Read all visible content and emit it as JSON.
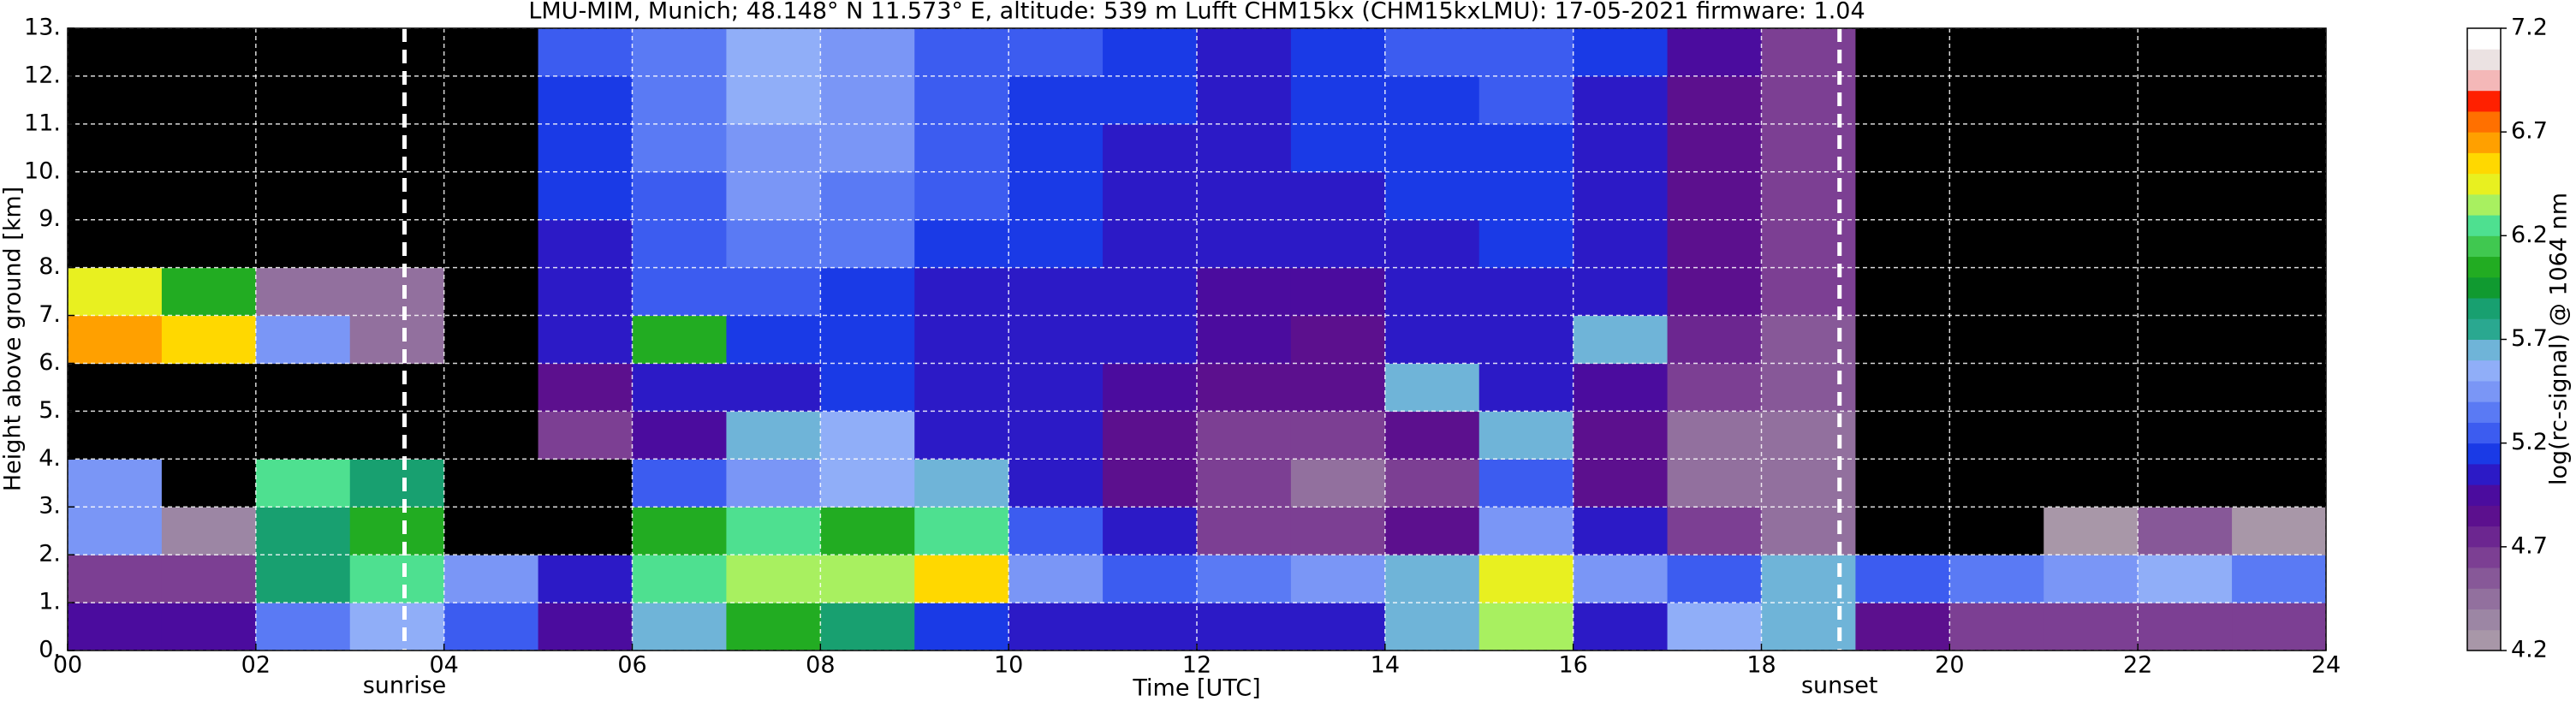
{
  "chart_data": {
    "type": "heatmap",
    "title": "LMU-MIM, Munich; 48.148° N 11.573° E, altitude: 539 m    Lufft CHM15kx (CHM15kxLMU): 17-05-2021    firmware: 1.04",
    "xlabel": "Time [UTC]",
    "ylabel": "Height above ground [km]",
    "xlim": [
      0,
      24
    ],
    "xticks": [
      {
        "value": 0,
        "label": "00"
      },
      {
        "value": 2,
        "label": "02"
      },
      {
        "value": 4,
        "label": "04"
      },
      {
        "value": 6,
        "label": "06"
      },
      {
        "value": 8,
        "label": "08"
      },
      10,
      12,
      14,
      16,
      18,
      20,
      22,
      24
    ],
    "ylim": [
      0,
      13
    ],
    "yticks": [
      {
        "value": 0,
        "label": "0."
      },
      {
        "value": 1,
        "label": "1."
      },
      {
        "value": 2,
        "label": "2."
      },
      {
        "value": 3,
        "label": "3."
      },
      {
        "value": 4,
        "label": "4."
      },
      {
        "value": 5,
        "label": "5."
      },
      {
        "value": 6,
        "label": "6."
      },
      {
        "value": 7,
        "label": "7."
      },
      {
        "value": 8,
        "label": "8."
      },
      {
        "value": 9,
        "label": "9."
      },
      {
        "value": 10,
        "label": "10."
      },
      {
        "value": 11,
        "label": "11."
      },
      {
        "value": 12,
        "label": "12."
      },
      {
        "value": 13,
        "label": "13."
      }
    ],
    "grid": true,
    "grid_color": "#ffffff",
    "under_color": "#000000",
    "z": [
      [
        4.9,
        4.9,
        5.3,
        5.5,
        5.2,
        4.9,
        5.6,
        6.0,
        5.8,
        5.1,
        5.0,
        5.0,
        5.0,
        5.0,
        5.6,
        6.3,
        5.0,
        5.5,
        5.6,
        4.8,
        4.6,
        4.6,
        4.6,
        4.6
      ],
      [
        4.6,
        4.6,
        5.8,
        6.2,
        5.4,
        5.0,
        6.2,
        6.3,
        6.3,
        6.5,
        5.4,
        5.2,
        5.3,
        5.4,
        5.6,
        6.4,
        5.4,
        5.2,
        5.6,
        5.2,
        5.3,
        5.4,
        5.5,
        5.3
      ],
      [
        5.4,
        4.3,
        5.8,
        6.0,
        4.0,
        4.0,
        6.0,
        6.2,
        6.0,
        6.2,
        5.2,
        5.0,
        4.6,
        4.6,
        4.8,
        5.4,
        5.0,
        4.6,
        4.4,
        4.0,
        4.0,
        4.2,
        4.5,
        4.2
      ],
      [
        5.4,
        4.0,
        6.2,
        5.8,
        4.0,
        4.0,
        5.2,
        5.4,
        5.5,
        5.6,
        5.0,
        4.8,
        4.6,
        4.4,
        4.6,
        5.2,
        4.8,
        4.4,
        4.4,
        4.0,
        4.0,
        4.0,
        4.0,
        4.0
      ],
      [
        4.0,
        4.0,
        4.0,
        4.0,
        4.0,
        4.6,
        4.9,
        5.6,
        5.5,
        5.0,
        5.0,
        4.8,
        4.6,
        4.6,
        4.8,
        5.6,
        4.8,
        4.4,
        4.4,
        4.0,
        4.0,
        4.0,
        4.0,
        4.0
      ],
      [
        4.0,
        4.0,
        4.0,
        4.0,
        4.0,
        4.8,
        5.0,
        5.0,
        5.1,
        5.0,
        5.0,
        4.9,
        4.8,
        4.8,
        5.6,
        5.0,
        4.9,
        4.6,
        4.5,
        4.0,
        4.0,
        4.0,
        4.0,
        4.0
      ],
      [
        6.6,
        6.5,
        5.4,
        4.4,
        4.0,
        5.0,
        6.0,
        5.1,
        5.1,
        5.0,
        5.0,
        5.0,
        4.9,
        4.8,
        5.0,
        5.0,
        5.6,
        4.7,
        4.5,
        4.0,
        4.0,
        4.0,
        4.0,
        4.0
      ],
      [
        6.4,
        6.0,
        4.4,
        4.4,
        4.0,
        5.0,
        5.2,
        5.2,
        5.1,
        5.0,
        5.0,
        5.0,
        4.9,
        4.9,
        5.0,
        5.0,
        5.0,
        4.8,
        4.6,
        4.0,
        4.0,
        4.0,
        4.0,
        4.0
      ],
      [
        4.0,
        4.0,
        4.0,
        4.0,
        4.0,
        5.0,
        5.2,
        5.3,
        5.3,
        5.1,
        5.1,
        5.0,
        5.0,
        5.0,
        5.0,
        5.1,
        5.0,
        4.8,
        4.6,
        4.0,
        4.0,
        4.0,
        4.0,
        4.0
      ],
      [
        4.0,
        4.0,
        4.0,
        4.0,
        4.0,
        5.1,
        5.2,
        5.4,
        5.3,
        5.2,
        5.1,
        5.0,
        5.0,
        5.0,
        5.1,
        5.1,
        5.0,
        4.8,
        4.6,
        4.0,
        4.0,
        4.0,
        4.0,
        4.0
      ],
      [
        4.0,
        4.0,
        4.0,
        4.0,
        4.0,
        5.1,
        5.3,
        5.4,
        5.4,
        5.2,
        5.1,
        5.0,
        5.0,
        5.1,
        5.1,
        5.1,
        5.0,
        4.8,
        4.6,
        4.0,
        4.0,
        4.0,
        4.0,
        4.0
      ],
      [
        4.0,
        4.0,
        4.0,
        4.0,
        4.0,
        5.1,
        5.3,
        5.5,
        5.4,
        5.2,
        5.1,
        5.1,
        5.0,
        5.1,
        5.1,
        5.2,
        5.0,
        4.8,
        4.6,
        4.0,
        4.0,
        4.0,
        4.0,
        4.0
      ],
      [
        4.0,
        4.0,
        4.0,
        4.0,
        4.0,
        5.2,
        5.3,
        5.5,
        5.4,
        5.2,
        5.2,
        5.1,
        5.0,
        5.1,
        5.2,
        5.2,
        5.1,
        4.9,
        4.6,
        4.0,
        4.0,
        4.0,
        4.0,
        4.0
      ]
    ],
    "annotations": [
      {
        "text": "sunrise",
        "x": 3.58
      },
      {
        "text": "sunset",
        "x": 18.83
      }
    ],
    "colorbar": {
      "label": "log(rc-signal) @ 1064 nm",
      "lim": [
        4.2,
        7.2
      ],
      "ticks": [
        4.2,
        4.7,
        5.2,
        5.7,
        6.2,
        6.7,
        7.2
      ],
      "colors": [
        "#a897a8",
        "#9c86a4",
        "#92709e",
        "#875898",
        "#7c3f93",
        "#6c2690",
        "#5c108e",
        "#4b0c9e",
        "#2c1ac6",
        "#1a3ae6",
        "#3c5cf0",
        "#5a7af4",
        "#7a96f6",
        "#90aef8",
        "#6fb4d8",
        "#2aa890",
        "#18a070",
        "#109a30",
        "#22ac22",
        "#40c850",
        "#4ee090",
        "#a8f060",
        "#e8f020",
        "#ffd800",
        "#ffa000",
        "#ff7000",
        "#ff2000",
        "#f4b8b8",
        "#ebe2e2",
        "#ffffff"
      ]
    }
  }
}
